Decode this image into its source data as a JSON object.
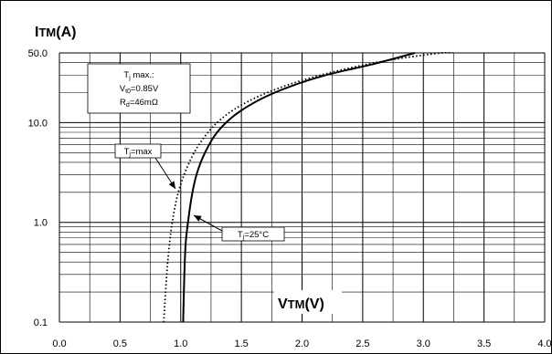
{
  "chart_data": {
    "type": "line",
    "ylabel_main": "I",
    "ylabel_sub": "TM",
    "ylabel_unit": "(A)",
    "xlabel_main": "V",
    "xlabel_sub": "TM",
    "xlabel_unit": "(V)",
    "x_scale": "linear",
    "y_scale": "log",
    "xlim": [
      0.0,
      4.0
    ],
    "ylim": [
      0.1,
      50.0
    ],
    "grid": true,
    "x_ticks": [
      "0.0",
      "0.5",
      "1.0",
      "1.5",
      "2.0",
      "2.5",
      "3.0",
      "3.5",
      "4.0"
    ],
    "y_ticks": [
      "0.1",
      "1.0",
      "10.0",
      "50.0"
    ],
    "series": [
      {
        "name": "Tj=25°C",
        "style": "solid",
        "points": [
          [
            1.02,
            0.1
          ],
          [
            1.03,
            0.3
          ],
          [
            1.04,
            0.6
          ],
          [
            1.06,
            1.0
          ],
          [
            1.09,
            1.8
          ],
          [
            1.13,
            3.0
          ],
          [
            1.2,
            5.0
          ],
          [
            1.3,
            8.0
          ],
          [
            1.45,
            12.0
          ],
          [
            1.65,
            17.0
          ],
          [
            1.9,
            23.0
          ],
          [
            2.2,
            30.0
          ],
          [
            2.6,
            39.0
          ],
          [
            2.93,
            50.0
          ]
        ]
      },
      {
        "name": "Tj=max",
        "style": "dotted",
        "points": [
          [
            0.86,
            0.1
          ],
          [
            0.88,
            0.25
          ],
          [
            0.9,
            0.5
          ],
          [
            0.93,
            1.0
          ],
          [
            0.98,
            2.0
          ],
          [
            1.05,
            3.5
          ],
          [
            1.15,
            6.0
          ],
          [
            1.3,
            10.0
          ],
          [
            1.5,
            15.0
          ],
          [
            1.8,
            22.0
          ],
          [
            2.2,
            31.0
          ],
          [
            2.7,
            42.0
          ],
          [
            3.25,
            52.0
          ]
        ]
      }
    ],
    "annotations": {
      "params_box": {
        "line1_main": "T",
        "line1_sub": "j",
        "line1_tail": " max.:",
        "line2_main": "V",
        "line2_sub": "t0",
        "line2_tail": "=0.85V",
        "line3_main": "R",
        "line3_sub": "d",
        "line3_tail": "=46mΩ"
      },
      "label_tjmax": {
        "main": "T",
        "sub": "j",
        "tail": "=max",
        "target": [
          0.98,
          2.5
        ]
      },
      "label_tj25": {
        "main": "T",
        "sub": "j",
        "tail": "=25°C",
        "target": [
          1.13,
          1.0
        ]
      }
    }
  }
}
